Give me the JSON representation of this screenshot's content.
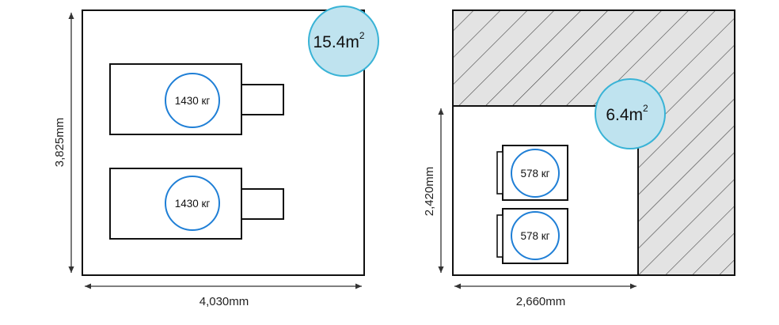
{
  "left_room": {
    "area_value": "15.4m",
    "area_exponent": "2",
    "height_label": "3,825mm",
    "width_label": "4,030mm",
    "units": [
      {
        "weight": "1430 кг"
      },
      {
        "weight": "1430 кг"
      }
    ]
  },
  "right_room": {
    "area_value": "6.4m",
    "area_exponent": "2",
    "height_label": "2,420mm",
    "width_label": "2,660mm",
    "units": [
      {
        "weight": "578 кг"
      },
      {
        "weight": "578 кг"
      }
    ]
  },
  "colors": {
    "area_circle_fill": "#bfe3ef",
    "area_circle_stroke": "#39b3d6",
    "weight_circle_stroke": "#1f7fd6",
    "hatch_fill": "#e3e3e3",
    "outline": "#111111"
  }
}
